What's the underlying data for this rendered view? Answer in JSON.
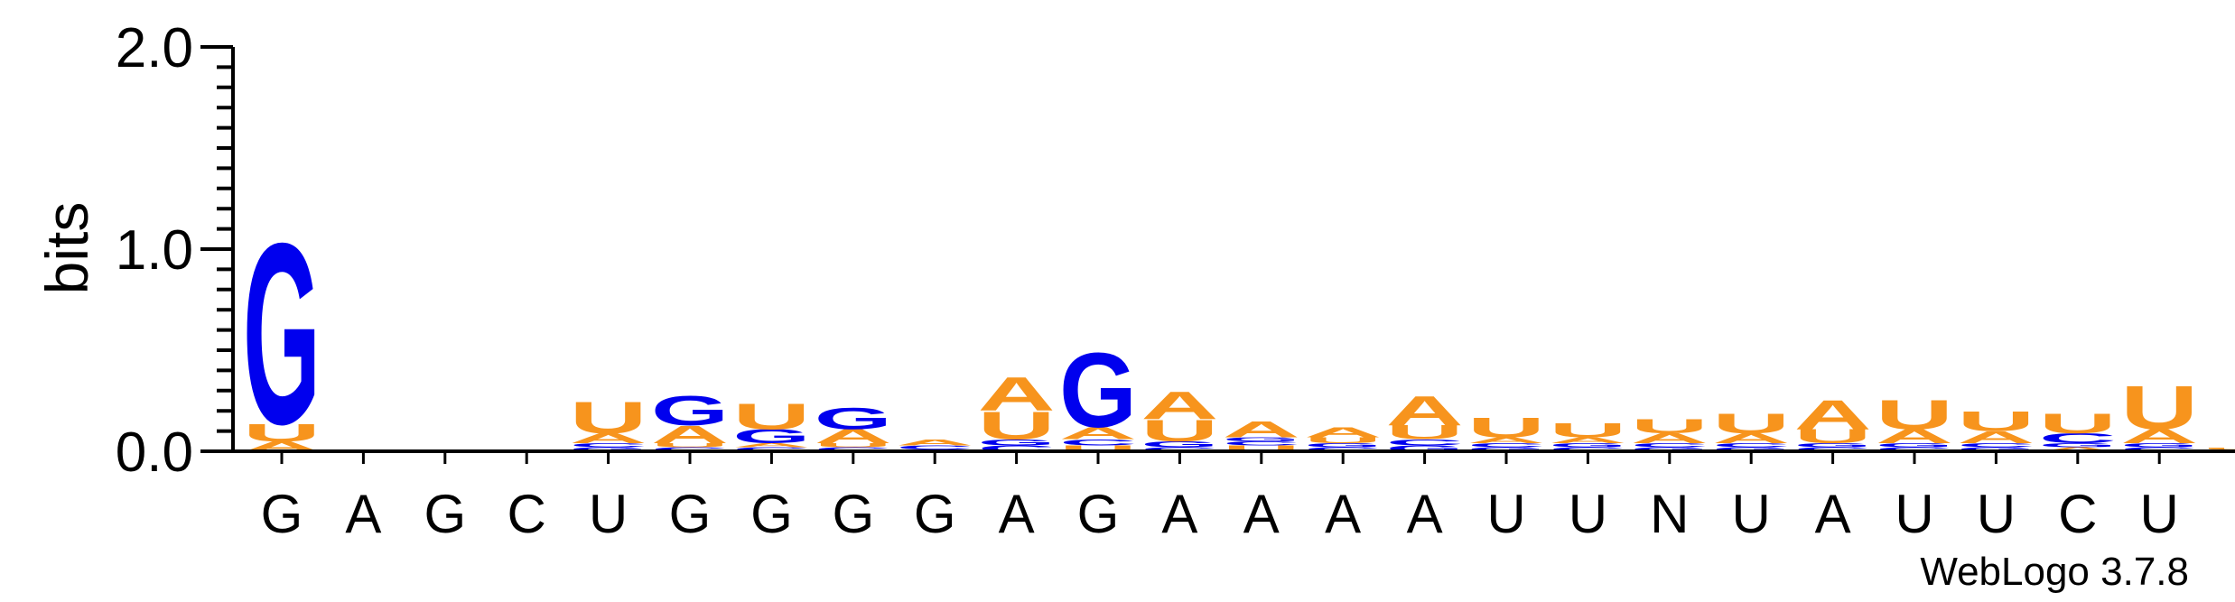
{
  "chart_data": {
    "type": "sequence-logo",
    "ylabel": "bits",
    "ylim": [
      0,
      2
    ],
    "yticks": [
      {
        "value": 0,
        "label": "0.0"
      },
      {
        "value": 1,
        "label": "1.0"
      },
      {
        "value": 2,
        "label": "2.0"
      }
    ],
    "colors": {
      "A": "#f7941d",
      "U": "#f7941d",
      "G": "#0000ee",
      "C": "#0000ee"
    },
    "consensus": [
      "G",
      "A",
      "G",
      "C",
      "U",
      "G",
      "G",
      "G",
      "G",
      "A",
      "G",
      "A",
      "A",
      "A",
      "A",
      "U",
      "U",
      "N",
      "U",
      "A",
      "U",
      "U",
      "C",
      "U"
    ],
    "columns": [
      {
        "pos": 1,
        "stack": [
          [
            "A",
            0.05
          ],
          [
            "U",
            0.09
          ],
          [
            "G",
            0.92
          ]
        ]
      },
      {
        "pos": 2,
        "stack": [
          [
            "A",
            0.01
          ]
        ]
      },
      {
        "pos": 3,
        "stack": [
          [
            "G",
            0.01
          ]
        ]
      },
      {
        "pos": 4,
        "stack": []
      },
      {
        "pos": 5,
        "stack": [
          [
            "G",
            0.02
          ],
          [
            "C",
            0.02
          ],
          [
            "A",
            0.05
          ],
          [
            "U",
            0.16
          ]
        ]
      },
      {
        "pos": 6,
        "stack": [
          [
            "C",
            0.02
          ],
          [
            "U",
            0.02
          ],
          [
            "A",
            0.09
          ],
          [
            "G",
            0.15
          ]
        ]
      },
      {
        "pos": 7,
        "stack": [
          [
            "C",
            0.02
          ],
          [
            "A",
            0.02
          ],
          [
            "G",
            0.07
          ],
          [
            "U",
            0.13
          ]
        ]
      },
      {
        "pos": 8,
        "stack": [
          [
            "C",
            0.02
          ],
          [
            "U",
            0.02
          ],
          [
            "A",
            0.07
          ],
          [
            "G",
            0.11
          ]
        ]
      },
      {
        "pos": 9,
        "stack": [
          [
            "U",
            0.01
          ],
          [
            "C",
            0.02
          ],
          [
            "A",
            0.03
          ]
        ]
      },
      {
        "pos": 10,
        "stack": [
          [
            "C",
            0.03
          ],
          [
            "G",
            0.03
          ],
          [
            "U",
            0.14
          ],
          [
            "A",
            0.17
          ]
        ]
      },
      {
        "pos": 11,
        "stack": [
          [
            "U",
            0.03
          ],
          [
            "C",
            0.03
          ],
          [
            "A",
            0.06
          ],
          [
            "G",
            0.38
          ]
        ]
      },
      {
        "pos": 12,
        "stack": [
          [
            "C",
            0.02
          ],
          [
            "G",
            0.03
          ],
          [
            "U",
            0.11
          ],
          [
            "A",
            0.14
          ]
        ]
      },
      {
        "pos": 13,
        "stack": [
          [
            "U",
            0.03
          ],
          [
            "C",
            0.02
          ],
          [
            "G",
            0.02
          ],
          [
            "A",
            0.08
          ]
        ]
      },
      {
        "pos": 14,
        "stack": [
          [
            "C",
            0.02
          ],
          [
            "G",
            0.02
          ],
          [
            "U",
            0.03
          ],
          [
            "A",
            0.05
          ]
        ]
      },
      {
        "pos": 15,
        "stack": [
          [
            "G",
            0.03
          ],
          [
            "C",
            0.03
          ],
          [
            "U",
            0.07
          ],
          [
            "A",
            0.15
          ]
        ]
      },
      {
        "pos": 16,
        "stack": [
          [
            "G",
            0.02
          ],
          [
            "C",
            0.02
          ],
          [
            "A",
            0.03
          ],
          [
            "U",
            0.1
          ]
        ]
      },
      {
        "pos": 17,
        "stack": [
          [
            "C",
            0.02
          ],
          [
            "G",
            0.02
          ],
          [
            "A",
            0.03
          ],
          [
            "U",
            0.07
          ]
        ]
      },
      {
        "pos": 18,
        "stack": [
          [
            "G",
            0.02
          ],
          [
            "C",
            0.02
          ],
          [
            "A",
            0.05
          ],
          [
            "U",
            0.07
          ]
        ]
      },
      {
        "pos": 19,
        "stack": [
          [
            "G",
            0.02
          ],
          [
            "C",
            0.02
          ],
          [
            "A",
            0.05
          ],
          [
            "U",
            0.1
          ]
        ]
      },
      {
        "pos": 20,
        "stack": [
          [
            "C",
            0.02
          ],
          [
            "G",
            0.02
          ],
          [
            "U",
            0.07
          ],
          [
            "A",
            0.15
          ]
        ]
      },
      {
        "pos": 21,
        "stack": [
          [
            "C",
            0.02
          ],
          [
            "G",
            0.02
          ],
          [
            "A",
            0.07
          ],
          [
            "U",
            0.15
          ]
        ]
      },
      {
        "pos": 22,
        "stack": [
          [
            "G",
            0.02
          ],
          [
            "C",
            0.02
          ],
          [
            "A",
            0.06
          ],
          [
            "U",
            0.1
          ]
        ]
      },
      {
        "pos": 23,
        "stack": [
          [
            "A",
            0.02
          ],
          [
            "G",
            0.02
          ],
          [
            "C",
            0.05
          ],
          [
            "U",
            0.1
          ]
        ]
      },
      {
        "pos": 24,
        "stack": [
          [
            "C",
            0.02
          ],
          [
            "G",
            0.02
          ],
          [
            "A",
            0.07
          ],
          [
            "U",
            0.22
          ]
        ]
      }
    ],
    "trailing_stack": [
      [
        "A",
        0.01
      ],
      [
        "U",
        0.01
      ]
    ]
  },
  "credit": "WebLogo 3.7.8"
}
